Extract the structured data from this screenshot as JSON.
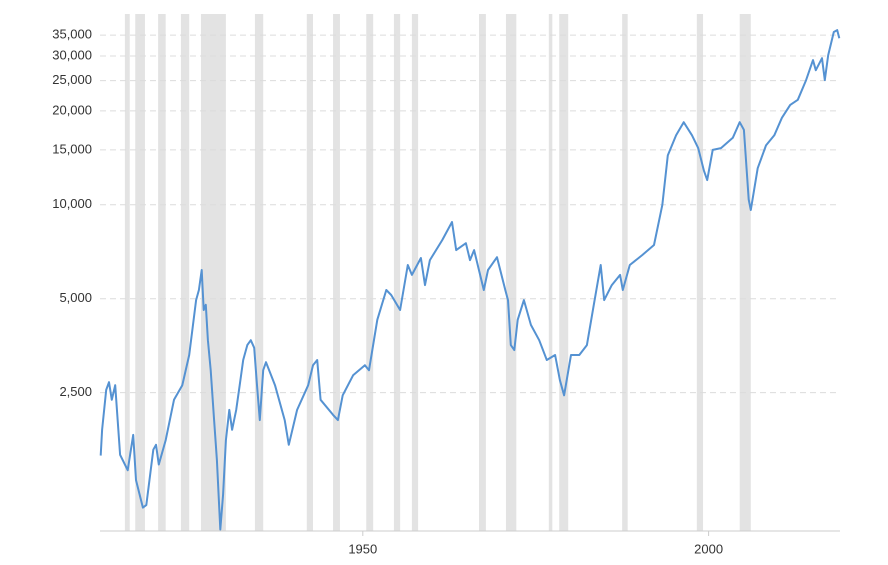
{
  "chart_data": {
    "type": "line",
    "log_scale_y": true,
    "grid": true,
    "xlim": [
      1912,
      2019
    ],
    "ylim": [
      900,
      40000
    ],
    "xticks": [
      1950,
      2000
    ],
    "yticks": [
      {
        "value": 2500,
        "label": "2,500"
      },
      {
        "value": 5000,
        "label": "5,000"
      },
      {
        "value": 10000,
        "label": "10,000"
      },
      {
        "value": 15000,
        "label": "15,000"
      },
      {
        "value": 20000,
        "label": "20,000"
      },
      {
        "value": 25000,
        "label": "25,000"
      },
      {
        "value": 30000,
        "label": "30,000"
      },
      {
        "value": 35000,
        "label": "35,000"
      }
    ],
    "recession_color": "#e3e3e3",
    "recessions": [
      [
        1915.6,
        1916.3
      ],
      [
        1917.1,
        1918.5
      ],
      [
        1920.4,
        1921.5
      ],
      [
        1923.7,
        1924.9
      ],
      [
        1926.6,
        1930.2
      ],
      [
        1934.4,
        1935.6
      ],
      [
        1941.9,
        1942.8
      ],
      [
        1945.7,
        1946.7
      ],
      [
        1950.5,
        1951.5
      ],
      [
        1954.5,
        1955.4
      ],
      [
        1957.1,
        1958.0
      ],
      [
        1966.8,
        1967.8
      ],
      [
        1970.7,
        1972.2
      ],
      [
        1976.9,
        1977.4
      ],
      [
        1978.4,
        1979.7
      ],
      [
        1987.5,
        1988.3
      ],
      [
        1998.3,
        1999.2
      ],
      [
        2004.5,
        2006.1
      ]
    ],
    "x": [
      1912.1,
      1912.3,
      1912.9,
      1913.3,
      1913.7,
      1914.2,
      1914.9,
      1916.0,
      1916.8,
      1917.2,
      1918.2,
      1918.7,
      1919.7,
      1920.1,
      1920.5,
      1921.5,
      1922.7,
      1923.9,
      1924.9,
      1925.9,
      1926.3,
      1926.7,
      1927.0,
      1927.3,
      1927.6,
      1928.0,
      1928.5,
      1928.9,
      1929.4,
      1929.8,
      1930.2,
      1930.7,
      1931.1,
      1931.7,
      1932.2,
      1932.7,
      1933.3,
      1933.8,
      1934.3,
      1934.7,
      1935.1,
      1935.6,
      1936.0,
      1937.3,
      1938.7,
      1939.3,
      1940.5,
      1942.1,
      1942.8,
      1943.4,
      1943.9,
      1945.7,
      1946.4,
      1947.1,
      1948.6,
      1950.3,
      1950.9,
      1952.1,
      1953.4,
      1954.1,
      1955.4,
      1956.5,
      1957.1,
      1958.4,
      1959.0,
      1959.7,
      1961.5,
      1962.9,
      1963.5,
      1964.9,
      1965.5,
      1966.1,
      1967.5,
      1968.1,
      1969.4,
      1970.6,
      1971.0,
      1971.4,
      1971.9,
      1972.4,
      1973.3,
      1974.3,
      1975.5,
      1976.6,
      1977.8,
      1978.5,
      1979.1,
      1980.1,
      1981.3,
      1982.4,
      1983.4,
      1984.4,
      1984.9,
      1986.0,
      1987.2,
      1987.6,
      1988.6,
      1990.4,
      1992.1,
      1993.3,
      1994.1,
      1995.3,
      1996.4,
      1997.6,
      1998.5,
      1999.3,
      1999.8,
      2000.6,
      2001.8,
      2003.5,
      2004.5,
      2005.1,
      2005.8,
      2006.1,
      2007.1,
      2008.3,
      2009.5,
      2010.6,
      2011.8,
      2012.9,
      2014.1,
      2015.1,
      2015.5,
      2016.4,
      2016.8,
      2017.3,
      2018.1,
      2018.6,
      2018.9
    ],
    "series": [
      {
        "color": "#5592d2",
        "values": [
          1570,
          1900,
          2550,
          2700,
          2370,
          2640,
          1580,
          1410,
          1830,
          1310,
          1070,
          1090,
          1640,
          1700,
          1470,
          1760,
          2370,
          2640,
          3300,
          4950,
          5330,
          6180,
          4600,
          4780,
          3680,
          2950,
          2040,
          1520,
          910,
          1180,
          1760,
          2200,
          1900,
          2200,
          2640,
          3180,
          3550,
          3680,
          3480,
          2640,
          2040,
          2950,
          3130,
          2640,
          2040,
          1700,
          2200,
          2640,
          3060,
          3180,
          2370,
          2120,
          2040,
          2450,
          2840,
          3060,
          2950,
          4280,
          5330,
          5140,
          4600,
          6410,
          5960,
          6750,
          5530,
          6650,
          7710,
          8810,
          7160,
          7530,
          6650,
          7160,
          5330,
          6180,
          6790,
          5330,
          4950,
          3550,
          3420,
          4280,
          4950,
          4120,
          3680,
          3180,
          3300,
          2740,
          2450,
          3300,
          3300,
          3550,
          4780,
          6410,
          4950,
          5530,
          5960,
          5330,
          6410,
          6900,
          7430,
          9980,
          14400,
          16700,
          18400,
          16700,
          15200,
          12900,
          12000,
          15000,
          15200,
          16400,
          18400,
          17400,
          10400,
          9620,
          13100,
          15500,
          16700,
          19000,
          20900,
          21700,
          25100,
          29100,
          27000,
          29500,
          25100,
          30200,
          35800,
          36300,
          34200
        ]
      }
    ]
  }
}
